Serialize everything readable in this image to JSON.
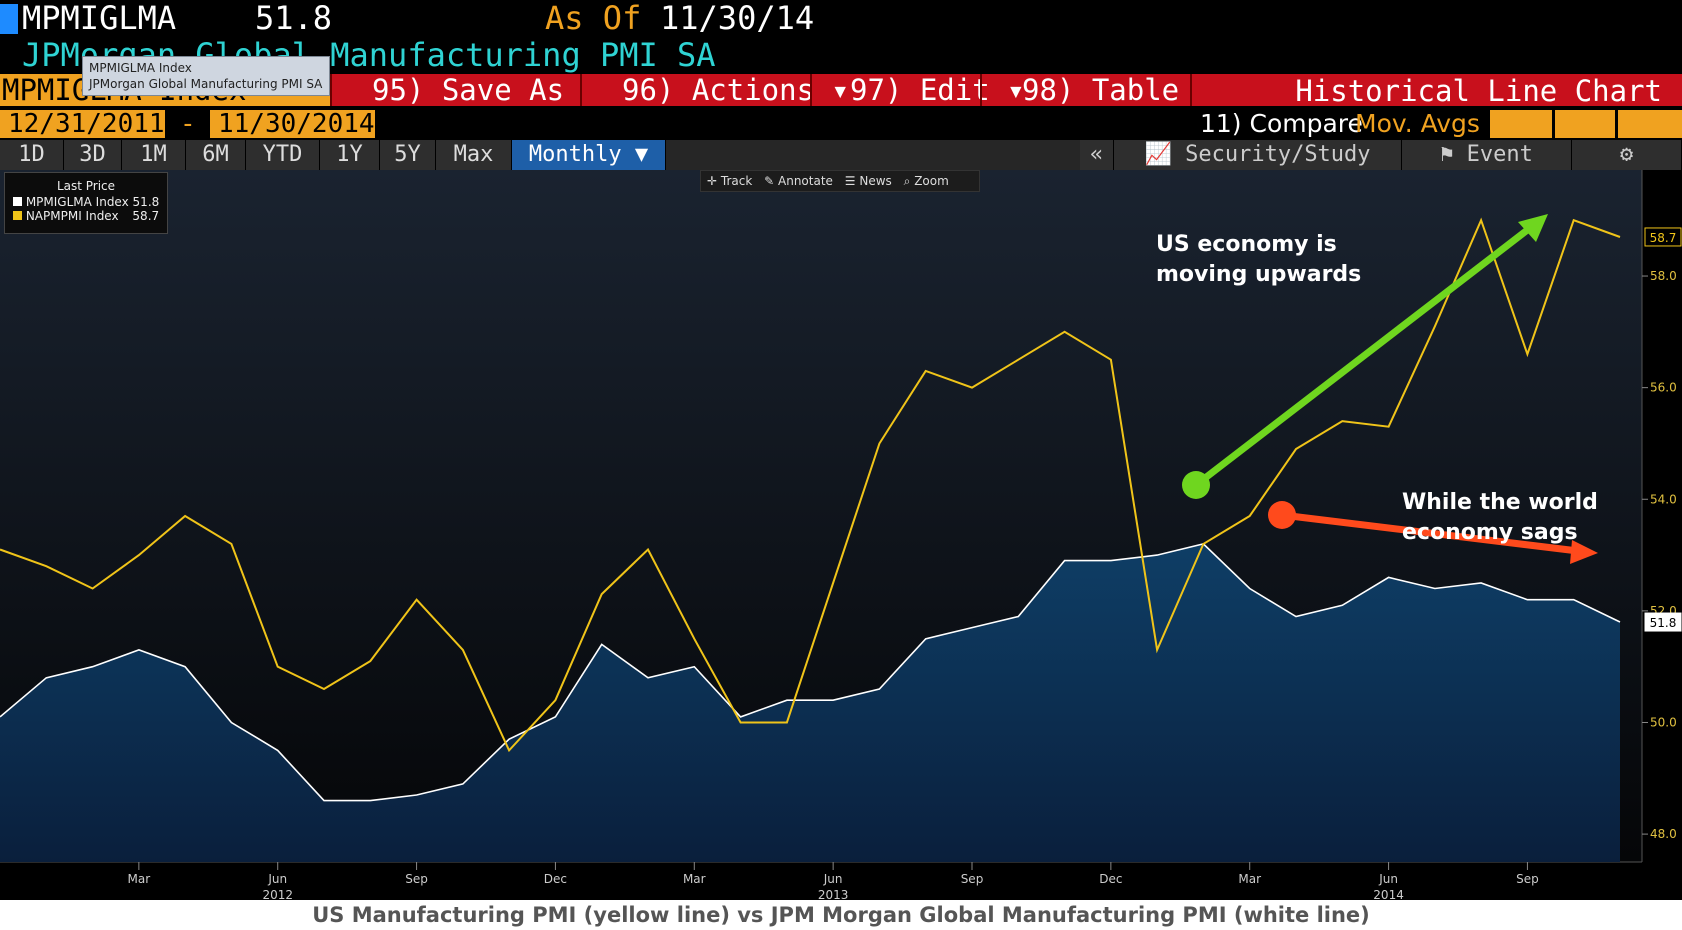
{
  "header": {
    "ticker": "MPMIGLMA",
    "last_value": "51.8",
    "as_of_label": "As Of",
    "as_of_date": "11/30/14",
    "security_name": "JPMorgan Global Manufacturing PMI SA",
    "row3_left": "MPMIGLMA Index"
  },
  "tooltip": {
    "line1": "MPMIGLMA Index",
    "line2": "JPMorgan Global Manufacturing PMI SA"
  },
  "menu": [
    {
      "label": "95) Save As"
    },
    {
      "label": "96) Actions ▾"
    },
    {
      "label": "97) Edit ▾"
    },
    {
      "label": "98) Table"
    }
  ],
  "menu_title": "Historical Line Chart",
  "range": {
    "start": "12/31/2011",
    "dash": "-",
    "end": "11/30/2014",
    "compare": "11) Compare",
    "mov_avgs": "Mov. Avgs"
  },
  "periods": [
    "1D",
    "3D",
    "1M",
    "6M",
    "YTD",
    "1Y",
    "5Y",
    "Max"
  ],
  "frequency": "Monthly ▼",
  "right_tabs": {
    "collapse": "«",
    "security_study": "Security/Study",
    "event": "Event"
  },
  "chart_toolbar": [
    "Track",
    "Annotate",
    "News",
    "Zoom"
  ],
  "legend": {
    "title": "Last Price",
    "items": [
      {
        "name": "MPMIGLMA Index",
        "value": "51.8",
        "color": "#ffffff"
      },
      {
        "name": "NAPMPMI Index",
        "value": "58.7",
        "color": "#f0c419"
      }
    ]
  },
  "colors": {
    "us_line": "#f0c419",
    "global_line": "#ffffff",
    "global_fill_top": "#0e3e66",
    "global_fill_bottom": "#0a1f3c",
    "green_arrow": "#6fd61f",
    "red_arrow": "#ff4a1c",
    "menu_red": "#c8101c",
    "accent_orange": "#f0a220"
  },
  "annotations": {
    "us": [
      "US economy is",
      "moving upwards"
    ],
    "world": [
      "While the world",
      "economy sags"
    ]
  },
  "caption": "US Manufacturing PMI (yellow line) vs JPM Morgan Global Manufacturing PMI (white line)",
  "chart_data": {
    "type": "area",
    "x": [
      "2011-12",
      "2012-01",
      "2012-02",
      "2012-03",
      "2012-04",
      "2012-05",
      "2012-06",
      "2012-07",
      "2012-08",
      "2012-09",
      "2012-10",
      "2012-11",
      "2012-12",
      "2013-01",
      "2013-02",
      "2013-03",
      "2013-04",
      "2013-05",
      "2013-06",
      "2013-07",
      "2013-08",
      "2013-09",
      "2013-10",
      "2013-11",
      "2013-12",
      "2014-01",
      "2014-02",
      "2014-03",
      "2014-04",
      "2014-05",
      "2014-06",
      "2014-07",
      "2014-08",
      "2014-09",
      "2014-10",
      "2014-11"
    ],
    "series": [
      {
        "name": "NAPMPMI Index",
        "values": [
          53.1,
          52.8,
          52.4,
          53.0,
          53.7,
          53.2,
          51.0,
          50.6,
          51.1,
          52.2,
          51.3,
          49.5,
          50.4,
          52.3,
          53.1,
          51.5,
          50.0,
          50.0,
          52.5,
          55.0,
          56.3,
          56.0,
          56.5,
          57.0,
          56.5,
          51.3,
          53.2,
          53.7,
          54.9,
          55.4,
          55.3,
          57.1,
          59.0,
          56.6,
          59.0,
          58.7
        ]
      },
      {
        "name": "MPMIGLMA Index",
        "values": [
          50.1,
          50.8,
          51.0,
          51.3,
          51.0,
          50.0,
          49.5,
          48.6,
          48.6,
          48.7,
          48.9,
          49.7,
          50.1,
          51.4,
          50.8,
          51.0,
          50.1,
          50.4,
          50.4,
          50.6,
          51.5,
          51.7,
          51.9,
          52.9,
          52.9,
          53.0,
          53.2,
          52.4,
          51.9,
          52.1,
          52.6,
          52.4,
          52.5,
          52.2,
          52.2,
          51.8
        ]
      }
    ],
    "x_ticks": [
      {
        "at": "2012-03",
        "label": "Mar"
      },
      {
        "at": "2012-06",
        "label": "Jun",
        "year": "2012"
      },
      {
        "at": "2012-09",
        "label": "Sep"
      },
      {
        "at": "2012-12",
        "label": "Dec"
      },
      {
        "at": "2013-03",
        "label": "Mar"
      },
      {
        "at": "2013-06",
        "label": "Jun",
        "year": "2013"
      },
      {
        "at": "2013-09",
        "label": "Sep"
      },
      {
        "at": "2013-12",
        "label": "Dec"
      },
      {
        "at": "2014-03",
        "label": "Mar"
      },
      {
        "at": "2014-06",
        "label": "Jun",
        "year": "2014"
      },
      {
        "at": "2014-09",
        "label": "Sep"
      }
    ],
    "y_ticks": [
      "48.0",
      "50.0",
      "52.0",
      "54.0",
      "56.0",
      "58.0"
    ],
    "ylim": [
      47.5,
      59.9
    ],
    "y_axis_side": "right",
    "last_labels": [
      {
        "series": "NAPMPMI Index",
        "value": "58.7"
      },
      {
        "series": "MPMIGLMA Index",
        "value": "51.8"
      }
    ],
    "grid": false
  }
}
